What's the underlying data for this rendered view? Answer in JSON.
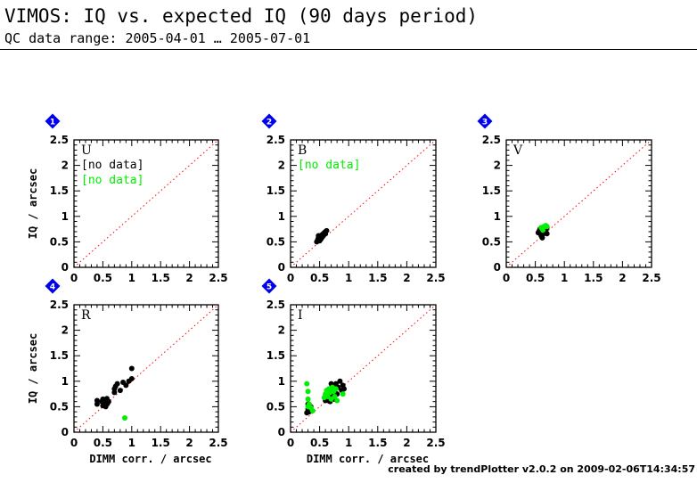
{
  "header": {
    "title": "VIMOS: IQ vs. expected IQ (90 days period)",
    "subtitle": "QC data range: 2005-04-01 … 2005-07-01"
  },
  "footer": {
    "credit": "created by trendPlotter v2.0.2 on 2009-02-06T14:34:57"
  },
  "colors": {
    "series_black": "#000000",
    "series_green": "#00ee00",
    "reference_line": "#ff0000",
    "badge": "#0000ee"
  },
  "chart_data": [
    {
      "type": "scatter",
      "badge": "1",
      "panel_label": "U",
      "xlabel": "",
      "ylabel": "IQ / arcsec",
      "xlim": [
        0,
        2.5
      ],
      "ylim": [
        0,
        2.5
      ],
      "x_ticks": [
        "0",
        "0.5",
        "1",
        "1.5",
        "2",
        "2.5"
      ],
      "y_ticks": [
        "0",
        "0.5",
        "1",
        "1.5",
        "2",
        "2.5"
      ],
      "reference_line": "y = x (dotted)",
      "notes": [
        {
          "text": "[no data]",
          "color": "#000000"
        },
        {
          "text": "[no data]",
          "color": "#00ee00"
        }
      ],
      "series": [
        {
          "color": "#000000",
          "points": []
        },
        {
          "color": "#00ee00",
          "points": []
        }
      ]
    },
    {
      "type": "scatter",
      "badge": "2",
      "panel_label": "B",
      "xlabel": "",
      "ylabel": "",
      "xlim": [
        0,
        2.5
      ],
      "ylim": [
        0,
        2.5
      ],
      "x_ticks": [
        "0",
        "0.5",
        "1",
        "1.5",
        "2",
        "2.5"
      ],
      "y_ticks": [
        "0",
        "0.5",
        "1",
        "1.5",
        "2",
        "2.5"
      ],
      "reference_line": "y = x (dotted)",
      "notes": [
        {
          "text": "[no data]",
          "color": "#00ee00"
        }
      ],
      "series": [
        {
          "color": "#000000",
          "points": [
            [
              0.45,
              0.5
            ],
            [
              0.47,
              0.55
            ],
            [
              0.48,
              0.58
            ],
            [
              0.5,
              0.52
            ],
            [
              0.5,
              0.6
            ],
            [
              0.52,
              0.62
            ],
            [
              0.53,
              0.57
            ],
            [
              0.55,
              0.6
            ],
            [
              0.55,
              0.65
            ],
            [
              0.57,
              0.63
            ],
            [
              0.58,
              0.68
            ],
            [
              0.6,
              0.66
            ],
            [
              0.6,
              0.7
            ],
            [
              0.62,
              0.72
            ],
            [
              0.48,
              0.62
            ],
            [
              0.52,
              0.55
            ]
          ]
        },
        {
          "color": "#00ee00",
          "points": []
        }
      ]
    },
    {
      "type": "scatter",
      "badge": "3",
      "panel_label": "V",
      "xlabel": "",
      "ylabel": "",
      "xlim": [
        0,
        2.5
      ],
      "ylim": [
        0,
        2.5
      ],
      "x_ticks": [
        "0",
        "0.5",
        "1",
        "1.5",
        "2",
        "2.5"
      ],
      "y_ticks": [
        "0",
        "0.5",
        "1",
        "1.5",
        "2",
        "2.5"
      ],
      "reference_line": "y = x (dotted)",
      "notes": [],
      "series": [
        {
          "color": "#000000",
          "points": [
            [
              0.55,
              0.68
            ],
            [
              0.57,
              0.72
            ],
            [
              0.6,
              0.7
            ],
            [
              0.6,
              0.62
            ],
            [
              0.62,
              0.58
            ],
            [
              0.63,
              0.65
            ],
            [
              0.65,
              0.75
            ],
            [
              0.67,
              0.68
            ],
            [
              0.68,
              0.72
            ],
            [
              0.7,
              0.78
            ],
            [
              0.7,
              0.66
            ],
            [
              0.58,
              0.75
            ]
          ]
        },
        {
          "color": "#00ee00",
          "points": [
            [
              0.6,
              0.78
            ],
            [
              0.65,
              0.8
            ],
            [
              0.68,
              0.82
            ],
            [
              0.7,
              0.8
            ],
            [
              0.63,
              0.73
            ]
          ]
        }
      ]
    },
    {
      "type": "scatter",
      "badge": "4",
      "panel_label": "R",
      "xlabel": "DIMM corr. / arcsec",
      "ylabel": "IQ / arcsec",
      "xlim": [
        0,
        2.5
      ],
      "ylim": [
        0,
        2.5
      ],
      "x_ticks": [
        "0",
        "0.5",
        "1",
        "1.5",
        "2",
        "2.5"
      ],
      "y_ticks": [
        "0",
        "0.5",
        "1",
        "1.5",
        "2",
        "2.5"
      ],
      "reference_line": "y = x (dotted)",
      "notes": [],
      "series": [
        {
          "color": "#000000",
          "points": [
            [
              0.4,
              0.55
            ],
            [
              0.4,
              0.62
            ],
            [
              0.48,
              0.6
            ],
            [
              0.5,
              0.52
            ],
            [
              0.5,
              0.65
            ],
            [
              0.52,
              0.58
            ],
            [
              0.55,
              0.5
            ],
            [
              0.55,
              0.62
            ],
            [
              0.57,
              0.66
            ],
            [
              0.58,
              0.56
            ],
            [
              0.6,
              0.6
            ],
            [
              0.7,
              0.78
            ],
            [
              0.7,
              0.85
            ],
            [
              0.72,
              0.9
            ],
            [
              0.75,
              0.95
            ],
            [
              0.8,
              0.82
            ],
            [
              0.85,
              0.98
            ],
            [
              0.9,
              0.92
            ],
            [
              0.95,
              1.0
            ],
            [
              1.0,
              1.05
            ],
            [
              1.0,
              1.25
            ]
          ]
        },
        {
          "color": "#00ee00",
          "points": [
            [
              0.88,
              0.28
            ]
          ]
        }
      ]
    },
    {
      "type": "scatter",
      "badge": "5",
      "panel_label": "I",
      "xlabel": "DIMM corr. / arcsec",
      "ylabel": "",
      "xlim": [
        0,
        2.5
      ],
      "ylim": [
        0,
        2.5
      ],
      "x_ticks": [
        "0",
        "0.5",
        "1",
        "1.5",
        "2",
        "2.5"
      ],
      "y_ticks": [
        "0",
        "0.5",
        "1",
        "1.5",
        "2",
        "2.5"
      ],
      "reference_line": "y = x (dotted)",
      "notes": [],
      "series": [
        {
          "color": "#000000",
          "points": [
            [
              0.28,
              0.38
            ],
            [
              0.3,
              0.45
            ],
            [
              0.32,
              0.4
            ],
            [
              0.35,
              0.5
            ],
            [
              0.3,
              0.55
            ],
            [
              0.6,
              0.62
            ],
            [
              0.62,
              0.7
            ],
            [
              0.65,
              0.78
            ],
            [
              0.65,
              0.62
            ],
            [
              0.68,
              0.85
            ],
            [
              0.7,
              0.72
            ],
            [
              0.72,
              0.9
            ],
            [
              0.75,
              0.8
            ],
            [
              0.75,
              0.65
            ],
            [
              0.78,
              0.95
            ],
            [
              0.8,
              0.75
            ],
            [
              0.82,
              0.88
            ],
            [
              0.85,
              1.0
            ],
            [
              0.88,
              0.82
            ],
            [
              0.9,
              0.92
            ],
            [
              0.92,
              0.85
            ],
            [
              0.7,
              0.95
            ],
            [
              0.68,
              0.6
            ],
            [
              0.72,
              0.7
            ]
          ]
        },
        {
          "color": "#00ee00",
          "points": [
            [
              0.28,
              0.95
            ],
            [
              0.3,
              0.8
            ],
            [
              0.3,
              0.65
            ],
            [
              0.32,
              0.55
            ],
            [
              0.35,
              0.48
            ],
            [
              0.38,
              0.42
            ],
            [
              0.3,
              0.5
            ],
            [
              0.6,
              0.75
            ],
            [
              0.62,
              0.82
            ],
            [
              0.64,
              0.7
            ],
            [
              0.66,
              0.85
            ],
            [
              0.68,
              0.78
            ],
            [
              0.7,
              0.65
            ],
            [
              0.72,
              0.88
            ],
            [
              0.74,
              0.8
            ],
            [
              0.76,
              0.7
            ],
            [
              0.78,
              0.85
            ],
            [
              0.8,
              0.62
            ],
            [
              0.9,
              0.75
            ],
            [
              0.58,
              0.68
            ]
          ]
        }
      ]
    }
  ]
}
